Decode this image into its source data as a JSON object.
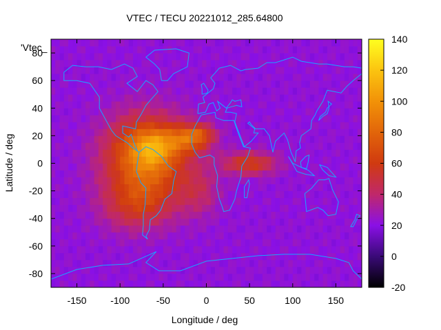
{
  "chart_data": {
    "type": "heatmap",
    "title": "VTEC / TECU 20221012_285.64800",
    "xlabel": "Longitude / deg",
    "ylabel": "Latitude / deg",
    "key_label": "'Vtec_",
    "xlim": [
      -180,
      180
    ],
    "ylim": [
      -90,
      90
    ],
    "x_ticks": [
      -150,
      -100,
      -50,
      0,
      50,
      100,
      150
    ],
    "y_ticks": [
      -80,
      -60,
      -40,
      -20,
      0,
      20,
      40,
      60,
      80
    ],
    "colorbar": {
      "range": [
        -20,
        140
      ],
      "ticks": [
        -20,
        0,
        20,
        40,
        60,
        80,
        100,
        120,
        140
      ],
      "stops": [
        {
          "value": -20,
          "color": "#000000"
        },
        {
          "value": 0,
          "color": "#3a0a78"
        },
        {
          "value": 20,
          "color": "#8a10e6"
        },
        {
          "value": 40,
          "color": "#c0286a"
        },
        {
          "value": 60,
          "color": "#d03a10"
        },
        {
          "value": 80,
          "color": "#e2650a"
        },
        {
          "value": 100,
          "color": "#f29208"
        },
        {
          "value": 120,
          "color": "#fbc410"
        },
        {
          "value": 140,
          "color": "#ffff20"
        }
      ]
    },
    "field": {
      "background": 22,
      "blobs": [
        {
          "lon": -70,
          "lat": 5,
          "slon": 45,
          "slat": 28,
          "amp": 70
        },
        {
          "lon": -60,
          "lat": 12,
          "slon": 22,
          "slat": 12,
          "amp": 30
        },
        {
          "lon": -20,
          "lat": 18,
          "slon": 25,
          "slat": 10,
          "amp": 45
        },
        {
          "lon": -5,
          "lat": 22,
          "slon": 15,
          "slat": 6,
          "amp": 20
        },
        {
          "lon": 50,
          "lat": 0,
          "slon": 30,
          "slat": 8,
          "amp": 38
        },
        {
          "lon": -80,
          "lat": -30,
          "slon": 40,
          "slat": 18,
          "amp": 30
        },
        {
          "lon": -10,
          "lat": -20,
          "slon": 25,
          "slat": 18,
          "amp": 18
        }
      ]
    }
  },
  "coastlines": [
    {
      "name": "north-america",
      "points": [
        [
          -165,
          66
        ],
        [
          -155,
          71
        ],
        [
          -140,
          70
        ],
        [
          -125,
          70
        ],
        [
          -110,
          68
        ],
        [
          -95,
          72
        ],
        [
          -85,
          69
        ],
        [
          -80,
          63
        ],
        [
          -92,
          58
        ],
        [
          -80,
          52
        ],
        [
          -70,
          60
        ],
        [
          -62,
          57
        ],
        [
          -56,
          52
        ],
        [
          -66,
          45
        ],
        [
          -70,
          42
        ],
        [
          -76,
          35
        ],
        [
          -81,
          30
        ],
        [
          -82,
          25
        ],
        [
          -97,
          27
        ],
        [
          -97,
          22
        ],
        [
          -90,
          19
        ],
        [
          -87,
          21
        ],
        [
          -84,
          15
        ],
        [
          -80,
          9
        ],
        [
          -78,
          8
        ],
        [
          -85,
          11
        ],
        [
          -92,
          15
        ],
        [
          -105,
          20
        ],
        [
          -110,
          24
        ],
        [
          -117,
          32
        ],
        [
          -124,
          40
        ],
        [
          -124,
          48
        ],
        [
          -135,
          58
        ],
        [
          -150,
          60
        ],
        [
          -165,
          60
        ],
        [
          -165,
          66
        ]
      ]
    },
    {
      "name": "greenland",
      "points": [
        [
          -52,
          60
        ],
        [
          -45,
          60
        ],
        [
          -38,
          65
        ],
        [
          -22,
          70
        ],
        [
          -20,
          80
        ],
        [
          -35,
          83
        ],
        [
          -60,
          82
        ],
        [
          -70,
          77
        ],
        [
          -60,
          72
        ],
        [
          -54,
          68
        ],
        [
          -52,
          60
        ]
      ]
    },
    {
      "name": "south-america",
      "points": [
        [
          -78,
          8
        ],
        [
          -70,
          12
        ],
        [
          -62,
          10
        ],
        [
          -52,
          5
        ],
        [
          -44,
          -2
        ],
        [
          -35,
          -6
        ],
        [
          -38,
          -13
        ],
        [
          -40,
          -22
        ],
        [
          -48,
          -26
        ],
        [
          -53,
          -34
        ],
        [
          -58,
          -38
        ],
        [
          -65,
          -41
        ],
        [
          -66,
          -48
        ],
        [
          -70,
          -53
        ],
        [
          -68,
          -55
        ],
        [
          -74,
          -52
        ],
        [
          -73,
          -45
        ],
        [
          -73,
          -37
        ],
        [
          -71,
          -30
        ],
        [
          -70,
          -18
        ],
        [
          -76,
          -14
        ],
        [
          -81,
          -6
        ],
        [
          -80,
          0
        ],
        [
          -78,
          8
        ]
      ]
    },
    {
      "name": "europe-asia",
      "points": [
        [
          -10,
          36
        ],
        [
          -9,
          43
        ],
        [
          -2,
          44
        ],
        [
          -4,
          48
        ],
        [
          2,
          51
        ],
        [
          8,
          54
        ],
        [
          10,
          58
        ],
        [
          5,
          62
        ],
        [
          15,
          69
        ],
        [
          28,
          71
        ],
        [
          40,
          67
        ],
        [
          45,
          68
        ],
        [
          60,
          69
        ],
        [
          70,
          73
        ],
        [
          80,
          73
        ],
        [
          100,
          77
        ],
        [
          110,
          74
        ],
        [
          130,
          72
        ],
        [
          140,
          72
        ],
        [
          160,
          70
        ],
        [
          170,
          70
        ],
        [
          180,
          69
        ]
      ]
    },
    {
      "name": "asia-east-coast",
      "points": [
        [
          180,
          65
        ],
        [
          170,
          60
        ],
        [
          163,
          56
        ],
        [
          156,
          51
        ],
        [
          140,
          53
        ],
        [
          135,
          45
        ],
        [
          128,
          38
        ],
        [
          126,
          35
        ],
        [
          122,
          31
        ],
        [
          121,
          25
        ],
        [
          110,
          20
        ],
        [
          108,
          15
        ],
        [
          109,
          11
        ],
        [
          104,
          9
        ],
        [
          103,
          1
        ],
        [
          98,
          8
        ],
        [
          94,
          17
        ],
        [
          90,
          22
        ],
        [
          80,
          16
        ],
        [
          77,
          8
        ],
        [
          73,
          20
        ],
        [
          67,
          25
        ],
        [
          57,
          25
        ],
        [
          52,
          28
        ],
        [
          50,
          30
        ],
        [
          48,
          29
        ],
        [
          56,
          25
        ],
        [
          55,
          22
        ],
        [
          60,
          22
        ],
        [
          52,
          16
        ],
        [
          44,
          12
        ],
        [
          36,
          25
        ],
        [
          33,
          30
        ],
        [
          35,
          36
        ],
        [
          28,
          37
        ],
        [
          22,
          37
        ],
        [
          24,
          40
        ],
        [
          29,
          41
        ],
        [
          35,
          42
        ],
        [
          41,
          41
        ],
        [
          40,
          46
        ],
        [
          33,
          45
        ],
        [
          30,
          46
        ],
        [
          28,
          44
        ],
        [
          23,
          40
        ],
        [
          19,
          42
        ],
        [
          13,
          45
        ],
        [
          16,
          40
        ],
        [
          12,
          38
        ],
        [
          8,
          44
        ],
        [
          3,
          43
        ],
        [
          -1,
          37
        ],
        [
          -10,
          36
        ]
      ]
    },
    {
      "name": "africa",
      "points": [
        [
          -6,
          35
        ],
        [
          10,
          37
        ],
        [
          11,
          33
        ],
        [
          20,
          31
        ],
        [
          32,
          31
        ],
        [
          34,
          27
        ],
        [
          38,
          20
        ],
        [
          43,
          12
        ],
        [
          51,
          11
        ],
        [
          48,
          5
        ],
        [
          41,
          -2
        ],
        [
          40,
          -10
        ],
        [
          35,
          -20
        ],
        [
          33,
          -26
        ],
        [
          27,
          -34
        ],
        [
          20,
          -35
        ],
        [
          18,
          -31
        ],
        [
          15,
          -26
        ],
        [
          12,
          -17
        ],
        [
          13,
          -9
        ],
        [
          9,
          -1
        ],
        [
          9,
          4
        ],
        [
          4,
          6
        ],
        [
          -8,
          4
        ],
        [
          -13,
          8
        ],
        [
          -17,
          14
        ],
        [
          -17,
          21
        ],
        [
          -13,
          27
        ],
        [
          -6,
          35
        ]
      ]
    },
    {
      "name": "madagascar",
      "points": [
        [
          44,
          -25
        ],
        [
          47,
          -25
        ],
        [
          50,
          -15
        ],
        [
          49,
          -12
        ],
        [
          44,
          -17
        ],
        [
          44,
          -25
        ]
      ]
    },
    {
      "name": "australia",
      "points": [
        [
          114,
          -22
        ],
        [
          122,
          -18
        ],
        [
          130,
          -12
        ],
        [
          137,
          -12
        ],
        [
          142,
          -11
        ],
        [
          146,
          -19
        ],
        [
          153,
          -28
        ],
        [
          150,
          -37
        ],
        [
          141,
          -38
        ],
        [
          135,
          -34
        ],
        [
          129,
          -32
        ],
        [
          116,
          -35
        ],
        [
          114,
          -22
        ]
      ]
    },
    {
      "name": "new-zealand",
      "points": [
        [
          167,
          -46
        ],
        [
          172,
          -41
        ],
        [
          174,
          -37
        ],
        [
          178,
          -38
        ],
        [
          174,
          -41
        ],
        [
          170,
          -46
        ],
        [
          167,
          -46
        ]
      ]
    },
    {
      "name": "antarctica",
      "points": [
        [
          -180,
          -84
        ],
        [
          -150,
          -77
        ],
        [
          -120,
          -74
        ],
        [
          -90,
          -73
        ],
        [
          -65,
          -66
        ],
        [
          -58,
          -64
        ],
        [
          -70,
          -72
        ],
        [
          -55,
          -78
        ],
        [
          -30,
          -78
        ],
        [
          0,
          -71
        ],
        [
          30,
          -69
        ],
        [
          60,
          -67
        ],
        [
          90,
          -66
        ],
        [
          120,
          -66
        ],
        [
          150,
          -69
        ],
        [
          165,
          -72
        ],
        [
          170,
          -78
        ],
        [
          180,
          -84
        ]
      ]
    },
    {
      "name": "japan",
      "points": [
        [
          130,
          31
        ],
        [
          135,
          34
        ],
        [
          140,
          36
        ],
        [
          142,
          40
        ],
        [
          141,
          45
        ],
        [
          145,
          43
        ],
        [
          140,
          40
        ],
        [
          138,
          37
        ],
        [
          132,
          34
        ],
        [
          130,
          31
        ]
      ]
    },
    {
      "name": "uk",
      "points": [
        [
          -5,
          50
        ],
        [
          1,
          51
        ],
        [
          2,
          53
        ],
        [
          -3,
          58
        ],
        [
          -6,
          57
        ],
        [
          -5,
          54
        ],
        [
          -5,
          50
        ]
      ]
    },
    {
      "name": "indonesia",
      "points": [
        [
          95,
          5
        ],
        [
          105,
          -6
        ],
        [
          115,
          -8
        ],
        [
          125,
          -9
        ],
        [
          118,
          -5
        ],
        [
          110,
          -3
        ],
        [
          100,
          0
        ],
        [
          95,
          5
        ]
      ]
    },
    {
      "name": "new-guinea",
      "points": [
        [
          131,
          -1
        ],
        [
          140,
          -3
        ],
        [
          150,
          -10
        ],
        [
          142,
          -9
        ],
        [
          135,
          -5
        ],
        [
          131,
          -1
        ]
      ]
    },
    {
      "name": "borneo",
      "points": [
        [
          109,
          1
        ],
        [
          115,
          5
        ],
        [
          119,
          6
        ],
        [
          118,
          1
        ],
        [
          116,
          -4
        ],
        [
          110,
          -3
        ],
        [
          109,
          1
        ]
      ]
    }
  ]
}
